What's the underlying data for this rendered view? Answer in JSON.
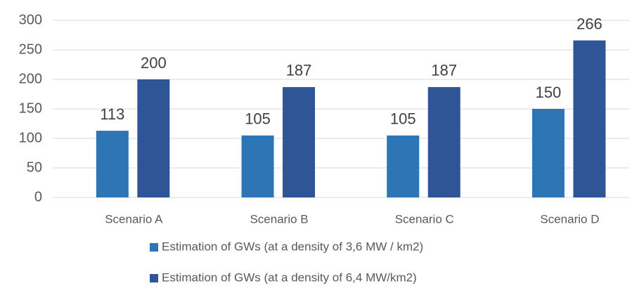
{
  "chart_data": {
    "type": "bar",
    "categories": [
      "Scenario A",
      "Scenario B",
      "Scenario C",
      "Scenario D"
    ],
    "series": [
      {
        "name": "Estimation of GWs (at a density of 3,6 MW / km2)",
        "color": "#2e75b6",
        "values": [
          113,
          105,
          105,
          150
        ]
      },
      {
        "name": "Estimation of GWs (at a density of 6,4 MW/km2)",
        "color": "#2f5597",
        "values": [
          200,
          187,
          187,
          266
        ]
      }
    ],
    "ylim": [
      0,
      300
    ],
    "yticks": [
      0,
      50,
      100,
      150,
      200,
      250,
      300
    ],
    "grid": true,
    "legend": "bottom"
  }
}
